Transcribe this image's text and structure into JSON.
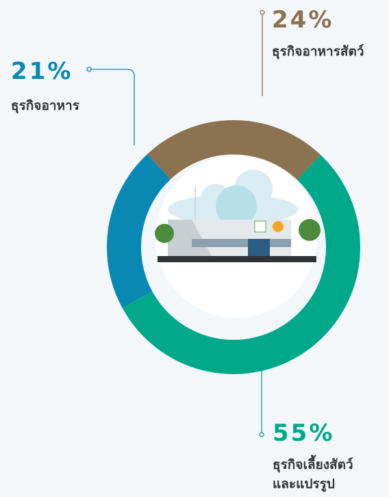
{
  "chart_data": {
    "type": "donut",
    "categories": [
      "ธุรกิจอาหารสัตว์",
      "ธุรกิจเลี้ยงสัตว์\nและแปรรูป",
      "ธุรกิจอาหาร"
    ],
    "values": [
      24,
      55,
      21
    ],
    "value_labels": [
      "24%",
      "55%",
      "21%"
    ],
    "colors": [
      "#8b7250",
      "#00a88a",
      "#0a88b4"
    ]
  }
}
